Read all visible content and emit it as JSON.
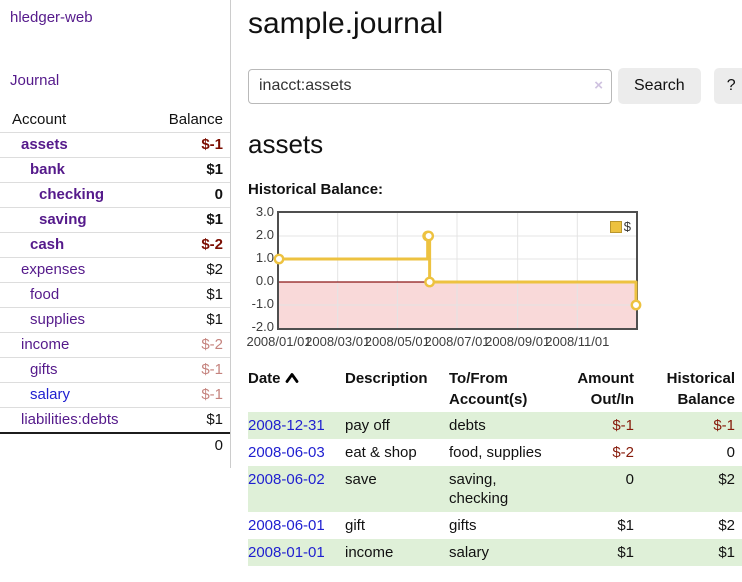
{
  "brand": "hledger-web",
  "nav": {
    "journal": "Journal"
  },
  "sidebar": {
    "account_header": "Account",
    "balance_header": "Balance",
    "rows": [
      {
        "name": "assets",
        "balance": "$-1",
        "depth": 1,
        "bold": true,
        "tone": "neg-strong",
        "link": "visited"
      },
      {
        "name": "bank",
        "balance": "$1",
        "depth": 2,
        "bold": true,
        "tone": "plain",
        "link": "visited"
      },
      {
        "name": "checking",
        "balance": "0",
        "depth": 3,
        "bold": true,
        "tone": "plain",
        "link": "visited"
      },
      {
        "name": "saving",
        "balance": "$1",
        "depth": 3,
        "bold": true,
        "tone": "plain",
        "link": "visited"
      },
      {
        "name": "cash",
        "balance": "$-2",
        "depth": 2,
        "bold": true,
        "tone": "neg-strong",
        "link": "visited"
      },
      {
        "name": "expenses",
        "balance": "$2",
        "depth": 1,
        "bold": false,
        "tone": "plain",
        "link": "visited"
      },
      {
        "name": "food",
        "balance": "$1",
        "depth": 2,
        "bold": false,
        "tone": "plain",
        "link": "visited"
      },
      {
        "name": "supplies",
        "balance": "$1",
        "depth": 2,
        "bold": false,
        "tone": "plain",
        "link": "visited"
      },
      {
        "name": "income",
        "balance": "$-2",
        "depth": 1,
        "bold": false,
        "tone": "neg-soft",
        "link": "visited"
      },
      {
        "name": "gifts",
        "balance": "$-1",
        "depth": 2,
        "bold": false,
        "tone": "neg-soft",
        "link": "visited"
      },
      {
        "name": "salary",
        "balance": "$-1",
        "depth": 2,
        "bold": false,
        "tone": "neg-soft",
        "link": "unvisited"
      },
      {
        "name": "liabilities:debts",
        "balance": "$1",
        "depth": 1,
        "bold": false,
        "tone": "plain",
        "link": "visited"
      }
    ],
    "total": "0"
  },
  "header": {
    "title": "sample.journal"
  },
  "search": {
    "value": "inacct:assets",
    "clear": "×",
    "search_label": "Search",
    "help_label": "?"
  },
  "account_page": {
    "heading": "assets",
    "chart_title": "Historical Balance:"
  },
  "chart_data": {
    "type": "line",
    "title": "Historical Balance",
    "step": true,
    "x_range": [
      "2008-01-01",
      "2008-12-31"
    ],
    "series": [
      {
        "name": "$",
        "color": "#EDC240",
        "points": [
          [
            "2008-01-01",
            1
          ],
          [
            "2008-06-01",
            2
          ],
          [
            "2008-06-02",
            2
          ],
          [
            "2008-06-03",
            0
          ],
          [
            "2008-12-31",
            -1
          ]
        ]
      }
    ],
    "ylim": [
      -2,
      3
    ],
    "ytick_labels": [
      "3.0",
      "2.0",
      "1.0",
      "0.0",
      "-1.0",
      "-2.0"
    ],
    "xtick_labels": [
      "2008/01/01",
      "2008/03/01",
      "2008/05/01",
      "2008/07/01",
      "2008/09/01",
      "2008/11/01"
    ],
    "grid": true,
    "legend": {
      "label": "$",
      "position": "top-right"
    },
    "negative_band_color": "#f9d9d9",
    "zero_line_color": "#8c1717"
  },
  "register": {
    "columns": [
      {
        "label": "Date",
        "sorted": "asc",
        "align": "left"
      },
      {
        "label": "Description",
        "align": "left"
      },
      {
        "label": "To/From Account(s)",
        "align": "left"
      },
      {
        "label": "Amount Out/In",
        "align": "right"
      },
      {
        "label": "Historical Balance",
        "align": "right"
      }
    ],
    "rows": [
      {
        "date": "2008-12-31",
        "description": "pay off",
        "accounts": "debts",
        "amount": "$-1",
        "balance": "$-1",
        "amount_negative": true,
        "balance_negative": true,
        "highlight": true
      },
      {
        "date": "2008-06-03",
        "description": "eat & shop",
        "accounts": "food, supplies",
        "amount": "$-2",
        "balance": "0",
        "amount_negative": true,
        "balance_negative": false,
        "highlight": false
      },
      {
        "date": "2008-06-02",
        "description": "save",
        "accounts": "saving, checking",
        "amount": "0",
        "balance": "$2",
        "amount_negative": false,
        "balance_negative": false,
        "highlight": true
      },
      {
        "date": "2008-06-01",
        "description": "gift",
        "accounts": "gifts",
        "amount": "$1",
        "balance": "$2",
        "amount_negative": false,
        "balance_negative": false,
        "highlight": false
      },
      {
        "date": "2008-01-01",
        "description": "income",
        "accounts": "salary",
        "amount": "$1",
        "balance": "$1",
        "amount_negative": false,
        "balance_negative": false,
        "highlight": true
      }
    ]
  }
}
